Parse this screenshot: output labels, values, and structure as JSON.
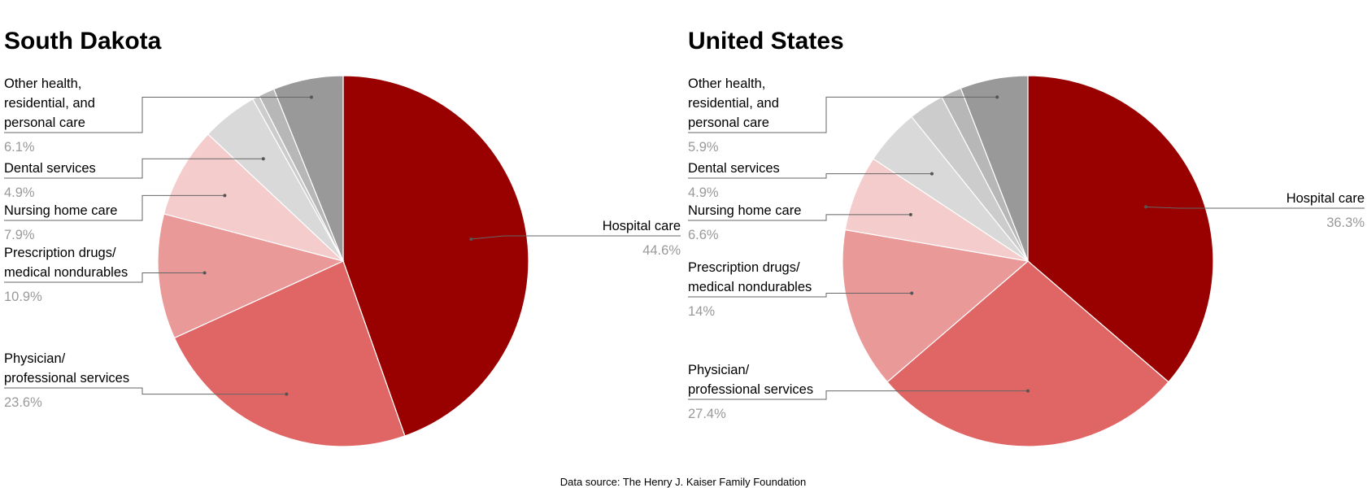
{
  "source_note": "Data source: The Henry J. Kaiser Family Foundation",
  "chart_data": [
    {
      "type": "pie",
      "title": "South Dakota",
      "slices": [
        {
          "label": "Hospital care",
          "value": 44.6,
          "value_label": "44.6%",
          "color": "#990000"
        },
        {
          "label": "Physician/ professional services",
          "value": 23.6,
          "value_label": "23.6%",
          "color": "#e06666"
        },
        {
          "label": "Prescription drugs/ medical nondurables",
          "value": 10.9,
          "value_label": "10.9%",
          "color": "#ea9999"
        },
        {
          "label": "Nursing home care",
          "value": 7.9,
          "value_label": "7.9%",
          "color": "#f4cccc"
        },
        {
          "label": "Dental services",
          "value": 4.9,
          "value_label": "4.9%",
          "color": "#d9d9d9"
        },
        {
          "label": "",
          "value": 0.6,
          "value_label": "",
          "color": "#cccccc"
        },
        {
          "label": "",
          "value": 1.4,
          "value_label": "",
          "color": "#b7b7b7"
        },
        {
          "label": "Other health, residential, and personal care",
          "value": 6.1,
          "value_label": "6.1%",
          "color": "#999999"
        }
      ]
    },
    {
      "type": "pie",
      "title": "United States",
      "slices": [
        {
          "label": "Hospital care",
          "value": 36.3,
          "value_label": "36.3%",
          "color": "#990000"
        },
        {
          "label": "Physician/ professional services",
          "value": 27.4,
          "value_label": "27.4%",
          "color": "#e06666"
        },
        {
          "label": "Prescription drugs/ medical nondurables",
          "value": 14,
          "value_label": "14%",
          "color": "#ea9999"
        },
        {
          "label": "Nursing home care",
          "value": 6.6,
          "value_label": "6.6%",
          "color": "#f4cccc"
        },
        {
          "label": "Dental services",
          "value": 4.9,
          "value_label": "4.9%",
          "color": "#d9d9d9"
        },
        {
          "label": "",
          "value": 3.1,
          "value_label": "",
          "color": "#cccccc"
        },
        {
          "label": "",
          "value": 1.8,
          "value_label": "",
          "color": "#b7b7b7"
        },
        {
          "label": "Other health, residential, and personal care",
          "value": 5.9,
          "value_label": "5.9%",
          "color": "#999999"
        }
      ]
    }
  ]
}
